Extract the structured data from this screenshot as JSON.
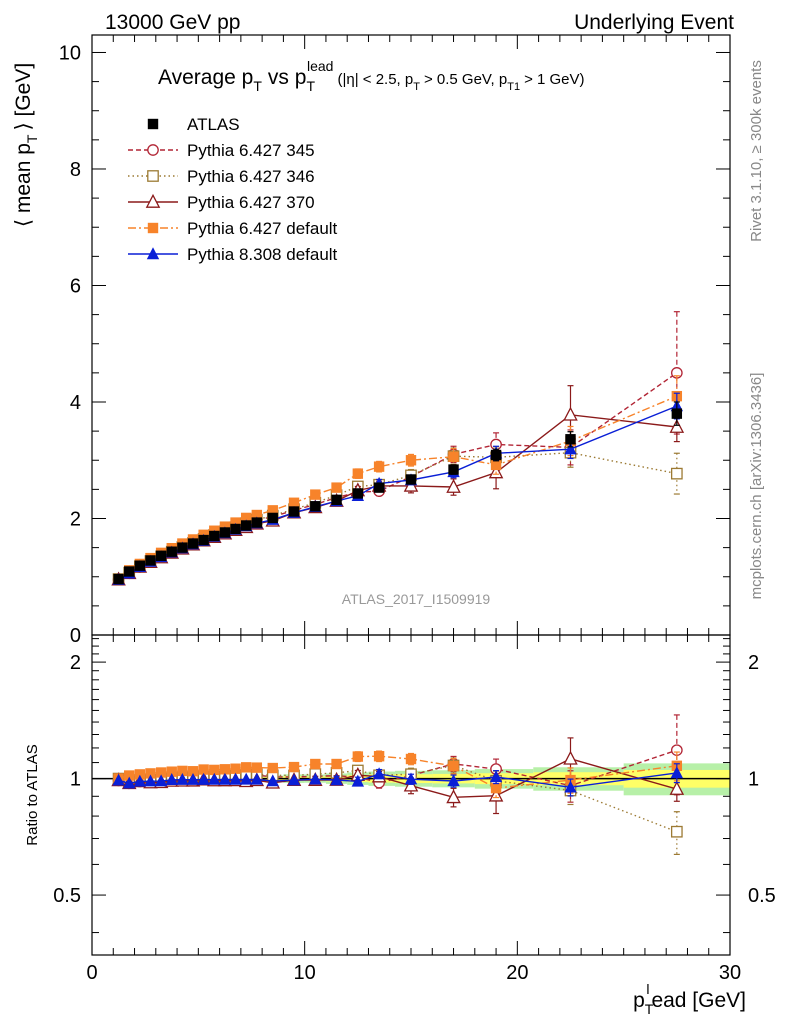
{
  "header": {
    "left": "13000 GeV pp",
    "right": "Underlying Event"
  },
  "side_labels": {
    "rivet": "Rivet 3.1.10, ≥ 300k events",
    "mcplots": "mcplots.cern.ch [arXiv:1306.3436]"
  },
  "analysis_id": "ATLAS_2017_I1509919",
  "title": {
    "main": "Average p",
    "main_sub": "T",
    "vs": "vs p",
    "vs_sub": "T",
    "vs_sup": "lead",
    "cuts_1": "(|η| < 2.5, p",
    "cuts_1_sub": "T",
    "cuts_2": "> 0.5 GeV, p",
    "cuts_2_sub": "T1",
    "cuts_3": "> 1 GeV)"
  },
  "y_label_main": {
    "pre": "⟨ mean p",
    "sub": "T",
    "post": "⟩ [GeV]"
  },
  "y_label_ratio": "Ratio to ATLAS",
  "x_label": {
    "pre": "p",
    "sub": "T",
    "sup": "l",
    "post": "ead [GeV]"
  },
  "colors": {
    "atlas": "#000000",
    "py345": "#b22535",
    "py346": "#9c7a33",
    "py370": "#8b1a1a",
    "py6def": "#f7832a",
    "py8def": "#0a1fd6",
    "band_inner": "#ffff66",
    "band_outer": "#b7f0a8"
  },
  "chart_data": {
    "type": "scatter",
    "main": {
      "xlim": [
        0,
        30
      ],
      "ylim": [
        0,
        10.3
      ],
      "y_ticks": [
        0,
        2,
        4,
        6,
        8,
        10
      ],
      "x_ticks": [
        0,
        10,
        20,
        30
      ]
    },
    "ratio": {
      "ylim": [
        0.35,
        2.35
      ],
      "y_ticks": [
        0.5,
        1,
        2
      ],
      "y_tick_labels": [
        "0.5",
        "1",
        "2"
      ]
    },
    "x": [
      1.25,
      1.75,
      2.25,
      2.75,
      3.25,
      3.75,
      4.25,
      4.75,
      5.25,
      5.75,
      6.25,
      6.75,
      7.25,
      7.75,
      8.5,
      9.5,
      10.5,
      11.5,
      12.5,
      13.5,
      15.0,
      17.0,
      19.0,
      22.5,
      27.5
    ],
    "series": [
      {
        "name": "ATLAS",
        "key": "atlas",
        "marker": "square-filled",
        "dash": "none",
        "values": [
          0.96,
          1.09,
          1.19,
          1.28,
          1.36,
          1.43,
          1.5,
          1.57,
          1.63,
          1.7,
          1.76,
          1.82,
          1.88,
          1.93,
          2.01,
          2.12,
          2.21,
          2.32,
          2.43,
          2.53,
          2.67,
          2.84,
          3.09,
          3.36,
          3.8
        ],
        "ratio": [
          1,
          1,
          1,
          1,
          1,
          1,
          1,
          1,
          1,
          1,
          1,
          1,
          1,
          1,
          1,
          1,
          1,
          1,
          1,
          1,
          1,
          1,
          1,
          1,
          1
        ],
        "err": [
          0.01,
          0.01,
          0.01,
          0.01,
          0.01,
          0.01,
          0.01,
          0.01,
          0.01,
          0.01,
          0.02,
          0.02,
          0.02,
          0.02,
          0.02,
          0.03,
          0.03,
          0.04,
          0.05,
          0.06,
          0.07,
          0.08,
          0.1,
          0.13,
          0.2
        ]
      },
      {
        "name": "Pythia 6.427 345",
        "key": "py345",
        "marker": "circle-open",
        "dash": "5,3",
        "values": [
          0.95,
          1.06,
          1.17,
          1.26,
          1.34,
          1.42,
          1.5,
          1.57,
          1.64,
          1.71,
          1.77,
          1.84,
          1.91,
          1.97,
          2.03,
          2.14,
          2.24,
          2.36,
          2.45,
          2.47,
          2.72,
          3.1,
          3.27,
          3.22,
          4.5
        ],
        "err": [
          0.01,
          0.01,
          0.01,
          0.01,
          0.01,
          0.01,
          0.01,
          0.02,
          0.02,
          0.02,
          0.02,
          0.02,
          0.03,
          0.03,
          0.03,
          0.04,
          0.05,
          0.06,
          0.07,
          0.08,
          0.1,
          0.14,
          0.2,
          0.3,
          1.05
        ]
      },
      {
        "name": "Pythia 6.427 346",
        "key": "py346",
        "marker": "square-open",
        "dash": "1.5,3",
        "values": [
          0.96,
          1.07,
          1.18,
          1.27,
          1.35,
          1.43,
          1.51,
          1.58,
          1.65,
          1.72,
          1.78,
          1.85,
          1.92,
          1.98,
          2.05,
          2.16,
          2.27,
          2.4,
          2.55,
          2.58,
          2.74,
          3.07,
          3.05,
          3.13,
          2.77
        ],
        "err": [
          0.01,
          0.01,
          0.01,
          0.01,
          0.01,
          0.01,
          0.01,
          0.02,
          0.02,
          0.02,
          0.02,
          0.02,
          0.03,
          0.03,
          0.03,
          0.04,
          0.05,
          0.06,
          0.07,
          0.08,
          0.1,
          0.14,
          0.18,
          0.25,
          0.35
        ]
      },
      {
        "name": "Pythia 6.427 370",
        "key": "py370",
        "marker": "triangle-open",
        "dash": "none",
        "values": [
          0.95,
          1.06,
          1.17,
          1.25,
          1.33,
          1.41,
          1.48,
          1.55,
          1.62,
          1.68,
          1.74,
          1.8,
          1.85,
          1.91,
          1.96,
          2.1,
          2.19,
          2.3,
          2.48,
          2.56,
          2.56,
          2.54,
          2.79,
          3.78,
          3.57
        ],
        "err": [
          0.01,
          0.01,
          0.01,
          0.01,
          0.01,
          0.01,
          0.01,
          0.02,
          0.02,
          0.02,
          0.02,
          0.02,
          0.03,
          0.03,
          0.03,
          0.04,
          0.05,
          0.06,
          0.07,
          0.08,
          0.12,
          0.14,
          0.28,
          0.5,
          0.25
        ]
      },
      {
        "name": "Pythia 6.427 default",
        "key": "py6def",
        "marker": "square-filled",
        "dash": "8,3,2,3",
        "values": [
          0.96,
          1.11,
          1.22,
          1.32,
          1.41,
          1.49,
          1.57,
          1.64,
          1.72,
          1.79,
          1.86,
          1.93,
          2.01,
          2.06,
          2.14,
          2.27,
          2.41,
          2.53,
          2.77,
          2.89,
          3.0,
          3.06,
          2.92,
          3.33,
          4.1
        ],
        "err": [
          0.01,
          0.01,
          0.01,
          0.01,
          0.01,
          0.01,
          0.01,
          0.02,
          0.02,
          0.02,
          0.02,
          0.02,
          0.03,
          0.03,
          0.03,
          0.04,
          0.05,
          0.06,
          0.08,
          0.09,
          0.1,
          0.14,
          0.16,
          0.25,
          0.35
        ]
      },
      {
        "name": "Pythia 8.308 default",
        "key": "py8def",
        "marker": "triangle-filled",
        "dash": "none",
        "values": [
          0.95,
          1.06,
          1.17,
          1.26,
          1.34,
          1.42,
          1.49,
          1.56,
          1.62,
          1.69,
          1.75,
          1.81,
          1.87,
          1.92,
          1.98,
          2.1,
          2.2,
          2.3,
          2.39,
          2.6,
          2.66,
          2.8,
          3.12,
          3.19,
          3.93
        ],
        "err": [
          0.01,
          0.01,
          0.01,
          0.01,
          0.01,
          0.01,
          0.01,
          0.01,
          0.02,
          0.02,
          0.02,
          0.02,
          0.02,
          0.03,
          0.03,
          0.03,
          0.04,
          0.05,
          0.06,
          0.07,
          0.08,
          0.1,
          0.12,
          0.16,
          0.22
        ]
      }
    ]
  }
}
